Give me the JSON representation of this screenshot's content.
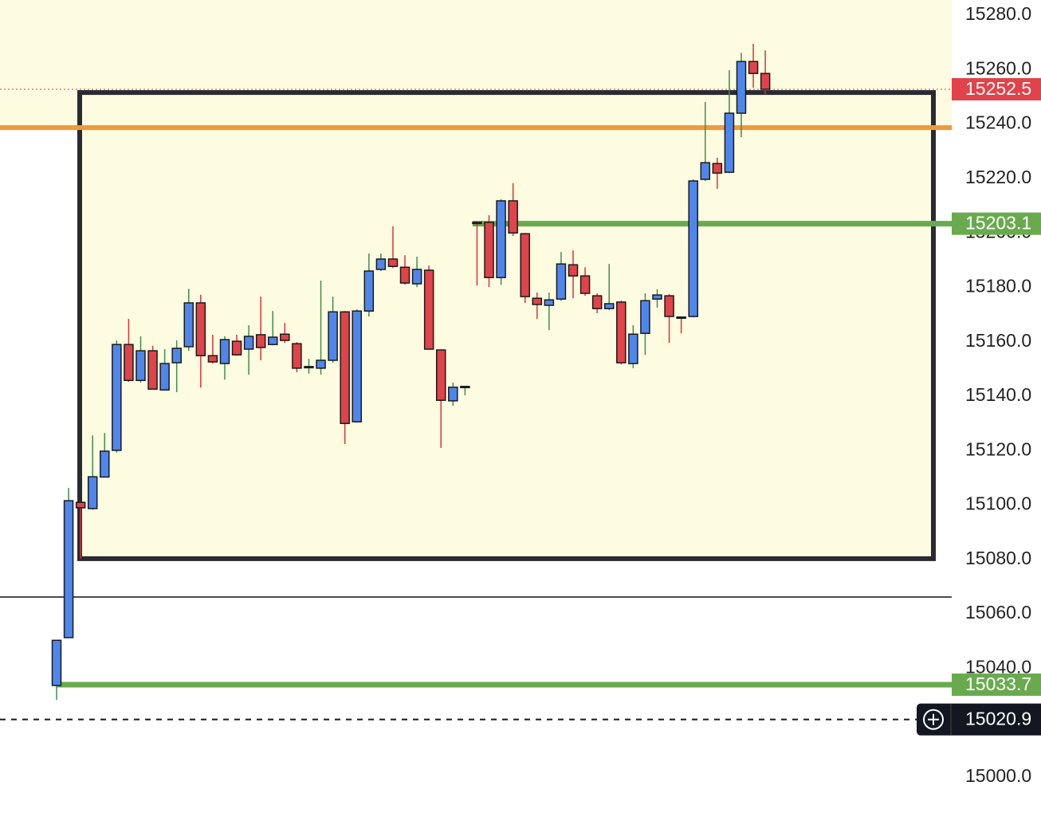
{
  "chart_data": {
    "type": "candlestick",
    "up_color": "#4f86ec",
    "down_color": "#e0434a",
    "open": [
      15033.4,
      15051,
      15100.7,
      15098.4,
      15110,
      15119.8,
      15158.7,
      15145.5,
      15156.4,
      15142,
      15152,
      15157.9,
      15174,
      15154.6,
      15151.7,
      15159.9,
      15157,
      15162.3,
      15158.7,
      15162.5,
      15159,
      15150.5,
      15150,
      15152.9,
      15170.7,
      15130.3,
      15171,
      15186.3,
      15190.1,
      15187.1,
      15181,
      15186,
      15156.7,
      15138,
      15143.2,
      15203.6,
      15203.6,
      15183.3,
      15211.5,
      15199.4,
      15175.7,
      15173.1,
      15175.4,
      15188,
      15183.9,
      15176.6,
      15171.9,
      15174.3,
      15151.7,
      15162.8,
      15175.4,
      15176.6,
      15168.8,
      15169,
      15219.4,
      15225.2,
      15222,
      15243.7,
      15262.7,
      15258.3
    ],
    "high": [
      15050,
      15106,
      15101,
      15125.3,
      15126.2,
      15160.2,
      15168.1,
      15161.7,
      15158.2,
      15157,
      15160.2,
      15179.2,
      15177,
      15162.3,
      15161.7,
      15162.3,
      15165.8,
      15176.3,
      15171,
      15166.6,
      15159.6,
      15153.4,
      15182.2,
      15176.3,
      15171,
      15171.6,
      15192.1,
      15192.1,
      15202.1,
      15191.5,
      15191,
      15187.7,
      15156.7,
      15144.7,
      15143.5,
      15204,
      15206.2,
      15212.1,
      15218,
      15199.7,
      15177.8,
      15177.8,
      15192.7,
      15193.3,
      15187.1,
      15177.5,
      15188.3,
      15174.8,
      15165.8,
      15177.5,
      15179,
      15177.2,
      15168.8,
      15219.4,
      15247.8,
      15227.3,
      15259.5,
      15265.9,
      15269.2,
      15266.8
    ],
    "low": [
      15028.1,
      15051,
      15080,
      15098,
      15110,
      15119,
      15145,
      15144.7,
      15142.3,
      15142,
      15141.2,
      15156.4,
      15142.9,
      15151.7,
      15145.8,
      15154.6,
      15147.6,
      15152.9,
      15158.4,
      15159.3,
      15148.5,
      15148,
      15147.6,
      15152,
      15122.1,
      15130,
      15169,
      15185.7,
      15186.8,
      15180.7,
      15179.8,
      15157,
      15120.7,
      15136.2,
      15140,
      15180.4,
      15179.8,
      15180.7,
      15198.6,
      15174,
      15168.1,
      15164,
      15174.8,
      15175.7,
      15176.6,
      15170.2,
      15171.3,
      15151.4,
      15150,
      15154.9,
      15172.2,
      15159.3,
      15162.8,
      15168.7,
      15218.8,
      15215.9,
      15221.7,
      15234.9,
      15253.1,
      15250.7
    ],
    "close": [
      15050,
      15101.3,
      15098.7,
      15110.1,
      15119.5,
      15158.7,
      15145.5,
      15156.4,
      15142.3,
      15151.7,
      15157.3,
      15174,
      15154.6,
      15152.3,
      15160.5,
      15154.9,
      15161.7,
      15157.6,
      15161.4,
      15160.2,
      15150,
      15150.6,
      15152.9,
      15170.7,
      15129.7,
      15171,
      15185.7,
      15190.1,
      15187.4,
      15181.3,
      15186.3,
      15157,
      15138.2,
      15143,
      15143.3,
      15203.3,
      15183.3,
      15211.5,
      15199.7,
      15176.3,
      15173.4,
      15175.1,
      15188.3,
      15183.9,
      15177.5,
      15171.9,
      15173.7,
      15152,
      15162.5,
      15174.8,
      15176.9,
      15169,
      15168.7,
      15218.8,
      15225.5,
      15221.7,
      15243.7,
      15262.7,
      15258.3,
      15252.5
    ],
    "ylim": [
      14983.6,
      15285.3
    ],
    "yticks": [
      {
        "value": 15000,
        "label": "15000.0"
      },
      {
        "value": 15020,
        "label": "15020.0"
      },
      {
        "value": 15040,
        "label": "15040.0"
      },
      {
        "value": 15060,
        "label": "15060.0"
      },
      {
        "value": 15080,
        "label": "15080.0"
      },
      {
        "value": 15100,
        "label": "15100.0"
      },
      {
        "value": 15120,
        "label": "15120.0"
      },
      {
        "value": 15140,
        "label": "15140.0"
      },
      {
        "value": 15160,
        "label": "15160.0"
      },
      {
        "value": 15180,
        "label": "15180.0"
      },
      {
        "value": 15200,
        "label": "15200.0"
      },
      {
        "value": 15220,
        "label": "15220.0"
      },
      {
        "value": 15240,
        "label": "15240.0"
      },
      {
        "value": 15260,
        "label": "15260.0"
      },
      {
        "value": 15280,
        "label": "15280.0"
      }
    ],
    "zone_color": "#fdfbe0",
    "box": {
      "top": 15251.3,
      "bottom": 15080
    },
    "lines": [
      {
        "value": 15238.4,
        "color": "#ef9a3c"
      },
      {
        "value": 15065.9,
        "color": "#111111"
      }
    ],
    "price_tags": [
      {
        "value": 15252.5,
        "color": "#e0434a"
      },
      {
        "value": 15203.1,
        "color": "#6aaa4f"
      },
      {
        "value": 15033.7,
        "color": "#6aaa4f"
      },
      {
        "value": 15020.9,
        "color": "#131722"
      }
    ]
  }
}
